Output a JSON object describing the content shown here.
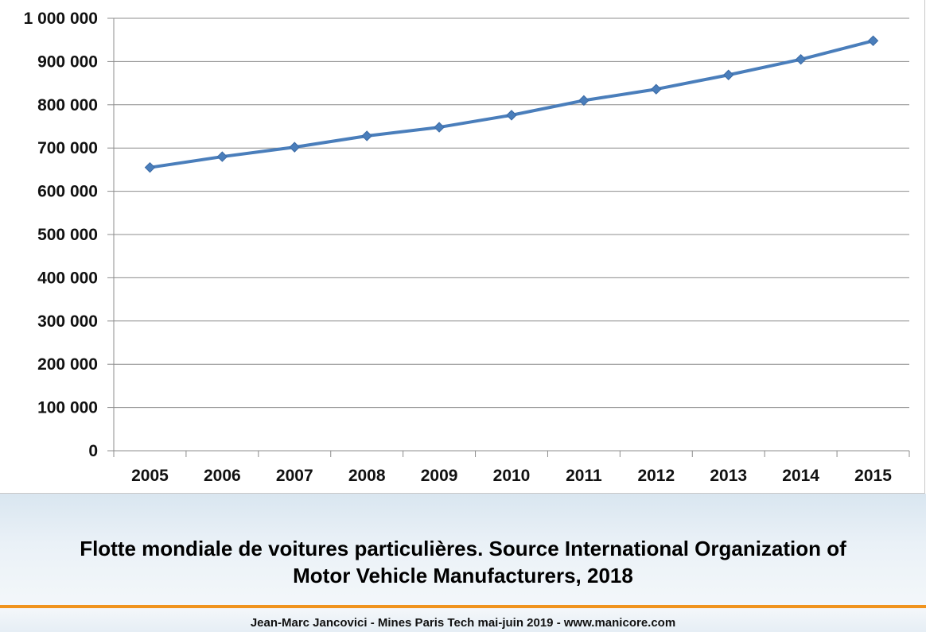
{
  "chart_data": {
    "type": "line",
    "categories": [
      "2005",
      "2006",
      "2007",
      "2008",
      "2009",
      "2010",
      "2011",
      "2012",
      "2013",
      "2014",
      "2015"
    ],
    "series": [
      {
        "values": [
          655000,
          680000,
          702000,
          728000,
          748000,
          776000,
          810000,
          836000,
          869000,
          905000,
          948000
        ]
      }
    ],
    "y_ticks": [
      "0",
      "100 000",
      "200 000",
      "300 000",
      "400 000",
      "500 000",
      "600 000",
      "700 000",
      "800 000",
      "900 000",
      "1 000 000"
    ],
    "ylim": [
      0,
      1000000
    ],
    "grid": true,
    "title": "",
    "xlabel": "",
    "ylabel": "",
    "colors": {
      "line": "#4a7ebb",
      "marker": "#4a7ebb",
      "grid": "#8c8c8c"
    }
  },
  "caption": {
    "line1": "Flotte mondiale de voitures particulières. Source International Organization of",
    "line2": "Motor Vehicle Manufacturers, 2018"
  },
  "footer": {
    "text": "Jean-Marc Jancovici - Mines Paris Tech mai-juin 2019 - www.manicore.com"
  },
  "theme": {
    "accent": "#f0941e",
    "band": "#dde8f1"
  }
}
